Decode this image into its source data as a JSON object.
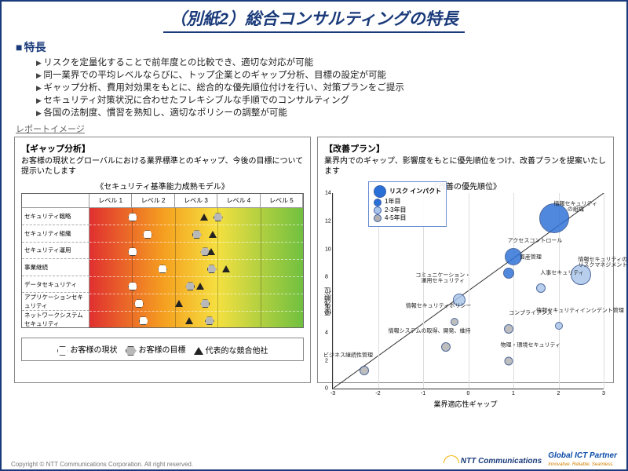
{
  "title": "（別紙2）総合コンサルティングの特長",
  "subtitle": "特長",
  "bullets": [
    "リスクを定量化することで前年度との比較でき、適切な対応が可能",
    "同一業界での平均レベルならびに、トップ企業とのギャップ分析、目標の設定が可能",
    "ギャップ分析、費用対効果をもとに、総合的な優先順位付けを行い、対策プランをご提示",
    "セキュリティ対策状況に合わせたフレキシブルな手順でのコンサルティング",
    "各国の法制度、慣習を熟知し、適切なポリシーの調整が可能"
  ],
  "report_label": "レポートイメージ",
  "left": {
    "title": "【ギャップ分析】",
    "desc": "お客様の現状とグローバルにおける業界標準とのギャップ、今後の目標について提示いたします",
    "caption": "《セキュリティ基準能力成熟モデル》",
    "levels": [
      "レベル 1",
      "レベル 2",
      "レベル 3",
      "レベル 4",
      "レベル 5"
    ],
    "rows": [
      "セキュリティ戦略",
      "セキュリティ組織",
      "セキュリティ運用",
      "事業継続",
      "データセキュリティ",
      "アプリケーションセキュリティ",
      "ネットワークシステムセキュリティ"
    ],
    "gradient_colors": [
      "#e03030",
      "#f5a020",
      "#f5e040",
      "#70c040"
    ],
    "current": [
      0.18,
      0.25,
      0.18,
      0.32,
      0.18,
      0.21,
      0.23
    ],
    "target": [
      0.58,
      0.48,
      0.52,
      0.55,
      0.45,
      0.52,
      0.54
    ],
    "competitor": [
      0.52,
      0.56,
      0.55,
      0.62,
      0.5,
      0.4,
      0.45
    ],
    "legend": {
      "current": "お客様の現状",
      "target": "お客様の目標",
      "competitor": "代表的な競合他社"
    }
  },
  "right": {
    "title": "【改善プラン】",
    "desc": "業界内でのギャップ、影響度をもとに優先順位をつけ、改善プランを提案いたします",
    "caption": "《改善の優先順位》",
    "xlabel": "業界適応性ギャップ",
    "ylabel": "優先順位",
    "xlim": [
      -3,
      3
    ],
    "ylim": [
      0,
      14
    ],
    "xticks": [
      -3,
      -2,
      -1,
      0,
      1,
      2,
      3
    ],
    "yticks": [
      0,
      2,
      4,
      6,
      8,
      10,
      12,
      14
    ],
    "legend_title": "リスク\nインパクト",
    "legend_items": [
      {
        "label": "1年目",
        "color": "#2a6fd6"
      },
      {
        "label": "2-3年目",
        "color": "#a8c4ea"
      },
      {
        "label": "4-5年目",
        "color": "#b0b0b0"
      }
    ],
    "bubbles": [
      {
        "label": "情報セキュリティ\nの組織",
        "x": 1.9,
        "y": 12.2,
        "r": 38,
        "color": "#2a6fd6"
      },
      {
        "label": "アクセスコントロール",
        "x": 1.0,
        "y": 9.5,
        "r": 22,
        "color": "#2a6fd6"
      },
      {
        "label": "資産管理",
        "x": 0.9,
        "y": 8.3,
        "r": 14,
        "color": "#2a6fd6"
      },
      {
        "label": "情報セキュリティの\nリスクマネジメント",
        "x": 2.5,
        "y": 8.2,
        "r": 26,
        "color": "#a8c4ea"
      },
      {
        "label": "人事セキュリティ",
        "x": 1.6,
        "y": 7.2,
        "r": 12,
        "color": "#a8c4ea"
      },
      {
        "label": "コミュニケーション・\n運用セキュリティ",
        "x": -0.2,
        "y": 6.4,
        "r": 16,
        "color": "#a8c4ea"
      },
      {
        "label": "情報セキュリティポリシー",
        "x": -0.3,
        "y": 4.8,
        "r": 10,
        "color": "#b0b0b0"
      },
      {
        "label": "コンプライアンス",
        "x": 0.9,
        "y": 4.3,
        "r": 12,
        "color": "#b0b0b0"
      },
      {
        "label": "情報セキュリティインシデント管理",
        "x": 2.0,
        "y": 4.5,
        "r": 10,
        "color": "#a8c4ea"
      },
      {
        "label": "情報システムの取得、開発、維持",
        "x": -0.5,
        "y": 3.0,
        "r": 12,
        "color": "#b0b0b0"
      },
      {
        "label": "物理・環境セキュリティ",
        "x": 0.9,
        "y": 2.0,
        "r": 11,
        "color": "#b0b0b0"
      },
      {
        "label": "ビジネス継続性管理",
        "x": -2.3,
        "y": 1.3,
        "r": 12,
        "color": "#b0b0b0"
      }
    ]
  },
  "footer": {
    "copyright": "Copyright © NTT Communications Corporation. All right reserved.",
    "logo1": "NTT Communications",
    "logo2": "Global ICT Partner",
    "logo2_sub": "Innovative. Reliable. Seamless."
  }
}
